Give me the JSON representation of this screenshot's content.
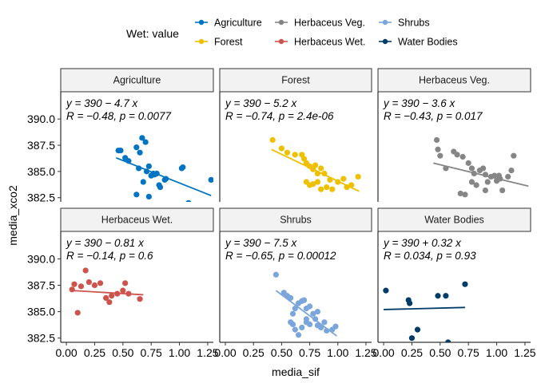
{
  "chart_data": {
    "type": "scatter",
    "xlabel": "media_sif",
    "ylabel": "media_xco2",
    "xlim": [
      -0.05,
      1.3
    ],
    "ylim": [
      382.1,
      392.6
    ],
    "xticks": [
      0.0,
      0.25,
      0.5,
      0.75,
      1.0,
      1.25
    ],
    "xtick_labels": [
      "0.00",
      "0.25",
      "0.50",
      "0.75",
      "1.00",
      "1.25"
    ],
    "yticks": [
      382.5,
      385.0,
      387.5,
      390.0
    ],
    "ytick_labels": [
      "382.5",
      "385.0",
      "387.5",
      "390.0"
    ],
    "legend": {
      "title": "Wet: value",
      "position": "top",
      "items": [
        {
          "label": "Agriculture",
          "color": "#0073C2"
        },
        {
          "label": "Forest",
          "color": "#EFC000"
        },
        {
          "label": "Herbaceus Veg.",
          "color": "#868686"
        },
        {
          "label": "Herbaceus Wet.",
          "color": "#CD534C"
        },
        {
          "label": "Shrubs",
          "color": "#7AA6DC"
        },
        {
          "label": "Water Bodies",
          "color": "#003C67"
        }
      ]
    },
    "panels": [
      {
        "name": "Agriculture",
        "color": "#0073C2",
        "eq_line": "y = 390 − 4.7 x",
        "stat_line": "R = −0.48, p = 0.0077",
        "fit": [
          0.44,
          386.3,
          1.28,
          382.7
        ],
        "points": [
          [
            0.46,
            387.0
          ],
          [
            0.48,
            387.0
          ],
          [
            0.52,
            386.3
          ],
          [
            0.55,
            386.0
          ],
          [
            0.62,
            387.3
          ],
          [
            0.65,
            386.8
          ],
          [
            0.67,
            388.2
          ],
          [
            0.7,
            387.8
          ],
          [
            0.64,
            385.3
          ],
          [
            0.68,
            384.0
          ],
          [
            0.71,
            385.0
          ],
          [
            0.73,
            385.5
          ],
          [
            0.75,
            384.6
          ],
          [
            0.77,
            384.8
          ],
          [
            0.78,
            384.7
          ],
          [
            0.8,
            384.8
          ],
          [
            0.82,
            383.7
          ],
          [
            0.83,
            383.5
          ],
          [
            0.87,
            384.2
          ],
          [
            0.88,
            384.3
          ],
          [
            0.62,
            382.8
          ],
          [
            0.73,
            382.6
          ],
          [
            1.02,
            385.3
          ],
          [
            1.03,
            385.4
          ],
          [
            1.08,
            382.0
          ],
          [
            1.28,
            384.2
          ]
        ]
      },
      {
        "name": "Forest",
        "color": "#EFC000",
        "eq_line": "y = 390 − 5.2 x",
        "stat_line": "R = −0.74, p = 2.4e-06",
        "fit": [
          0.41,
          387.1,
          1.19,
          383.1
        ],
        "points": [
          [
            0.42,
            388.0
          ],
          [
            0.5,
            387.2
          ],
          [
            0.55,
            386.8
          ],
          [
            0.62,
            386.6
          ],
          [
            0.68,
            386.6
          ],
          [
            0.7,
            386.2
          ],
          [
            0.72,
            385.8
          ],
          [
            0.75,
            385.5
          ],
          [
            0.78,
            385.2
          ],
          [
            0.8,
            385.6
          ],
          [
            0.82,
            384.8
          ],
          [
            0.85,
            385.3
          ],
          [
            0.88,
            384.8
          ],
          [
            0.72,
            384.0
          ],
          [
            0.75,
            383.7
          ],
          [
            0.78,
            383.8
          ],
          [
            0.82,
            384.0
          ],
          [
            0.85,
            383.3
          ],
          [
            0.9,
            383.5
          ],
          [
            0.93,
            384.2
          ],
          [
            0.95,
            383.3
          ],
          [
            1.0,
            384.0
          ],
          [
            1.05,
            384.3
          ],
          [
            1.08,
            383.5
          ],
          [
            1.12,
            383.7
          ],
          [
            1.18,
            384.5
          ]
        ]
      },
      {
        "name": "Herbaceus Veg.",
        "color": "#868686",
        "eq_line": "y = 390 − 3.6 x",
        "stat_line": "R = −0.43, p = 0.017",
        "fit": [
          0.44,
          385.8,
          1.28,
          383.6
        ],
        "points": [
          [
            0.47,
            388.0
          ],
          [
            0.48,
            387.1
          ],
          [
            0.5,
            386.5
          ],
          [
            0.55,
            385.3
          ],
          [
            0.62,
            386.9
          ],
          [
            0.65,
            386.6
          ],
          [
            0.7,
            386.4
          ],
          [
            0.75,
            385.8
          ],
          [
            0.78,
            385.3
          ],
          [
            0.8,
            384.8
          ],
          [
            0.85,
            385.1
          ],
          [
            0.88,
            385.3
          ],
          [
            0.9,
            384.7
          ],
          [
            0.92,
            384.0
          ],
          [
            0.95,
            384.5
          ],
          [
            0.98,
            384.6
          ],
          [
            1.0,
            384.1
          ],
          [
            1.02,
            384.6
          ],
          [
            1.03,
            384.3
          ],
          [
            0.68,
            382.9
          ],
          [
            0.72,
            382.8
          ],
          [
            0.78,
            384.0
          ],
          [
            0.82,
            383.7
          ],
          [
            0.9,
            383.2
          ],
          [
            1.05,
            383.2
          ],
          [
            1.1,
            384.5
          ],
          [
            1.13,
            385.1
          ],
          [
            1.15,
            386.5
          ]
        ]
      },
      {
        "name": "Herbaceus Wet.",
        "color": "#CD534C",
        "eq_line": "y = 390 − 0.81 x",
        "stat_line": "R = −0.14, p = 0.6",
        "fit": [
          0.05,
          387.0,
          0.68,
          386.6
        ],
        "points": [
          [
            0.05,
            387.1
          ],
          [
            0.07,
            387.6
          ],
          [
            0.1,
            384.9
          ],
          [
            0.13,
            387.4
          ],
          [
            0.17,
            388.9
          ],
          [
            0.2,
            387.8
          ],
          [
            0.25,
            387.5
          ],
          [
            0.3,
            387.7
          ],
          [
            0.35,
            386.3
          ],
          [
            0.38,
            385.9
          ],
          [
            0.4,
            386.5
          ],
          [
            0.45,
            386.7
          ],
          [
            0.5,
            387.0
          ],
          [
            0.52,
            387.7
          ],
          [
            0.55,
            386.7
          ],
          [
            0.65,
            386.2
          ]
        ]
      },
      {
        "name": "Shrubs",
        "color": "#7AA6DC",
        "eq_line": "y = 390 − 7.5 x",
        "stat_line": "R = −0.65, p = 0.00012",
        "fit": [
          0.45,
          387.0,
          0.99,
          382.7
        ],
        "points": [
          [
            0.45,
            388.5
          ],
          [
            0.52,
            386.8
          ],
          [
            0.55,
            386.5
          ],
          [
            0.58,
            386.3
          ],
          [
            0.6,
            384.8
          ],
          [
            0.62,
            385.3
          ],
          [
            0.65,
            385.8
          ],
          [
            0.68,
            386.0
          ],
          [
            0.7,
            386.1
          ],
          [
            0.72,
            385.3
          ],
          [
            0.75,
            385.5
          ],
          [
            0.58,
            384.0
          ],
          [
            0.6,
            383.8
          ],
          [
            0.62,
            383.3
          ],
          [
            0.65,
            382.8
          ],
          [
            0.68,
            383.5
          ],
          [
            0.72,
            384.3
          ],
          [
            0.75,
            383.8
          ],
          [
            0.78,
            384.8
          ],
          [
            0.8,
            384.3
          ],
          [
            0.82,
            383.7
          ],
          [
            0.85,
            383.5
          ],
          [
            0.88,
            384.0
          ],
          [
            0.9,
            383.2
          ],
          [
            0.95,
            383.3
          ],
          [
            0.98,
            383.6
          ],
          [
            0.72,
            384.0
          ],
          [
            0.82,
            385.0
          ]
        ]
      },
      {
        "name": "Water Bodies",
        "color": "#003C67",
        "eq_line": "y = 390 + 0.32 x",
        "stat_line": "R = 0.034, p = 0.93",
        "fit": [
          0.0,
          385.2,
          0.72,
          385.4
        ],
        "points": [
          [
            0.02,
            387.0
          ],
          [
            0.22,
            386.1
          ],
          [
            0.23,
            385.8
          ],
          [
            0.25,
            382.5
          ],
          [
            0.3,
            383.3
          ],
          [
            0.48,
            386.5
          ],
          [
            0.55,
            386.5
          ],
          [
            0.57,
            382.1
          ],
          [
            0.72,
            387.6
          ]
        ]
      }
    ]
  }
}
